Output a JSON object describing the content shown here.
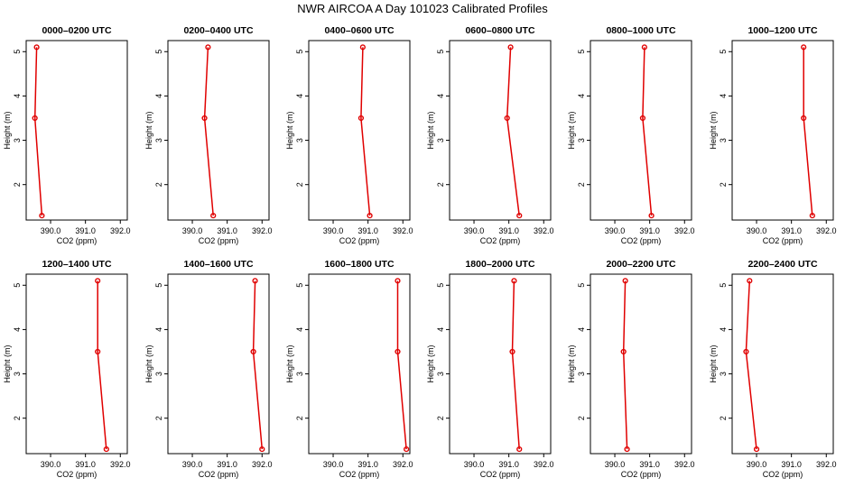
{
  "title": "NWR AIRCOA A  Day 101023  Calibrated Profiles",
  "chart_data": {
    "type": "line",
    "xlabel": "CO2 (ppm)",
    "ylabel": "Height (m)",
    "xlim": [
      389.3,
      392.2
    ],
    "ylim": [
      1.2,
      5.25
    ],
    "xticks": [
      390.0,
      391.0,
      392.0
    ],
    "xtick_labels": [
      "390.0",
      "391.0",
      "392.0"
    ],
    "yticks": [
      2,
      3,
      4,
      5
    ],
    "ytick_labels": [
      "2",
      "3",
      "4",
      "5"
    ],
    "heights": [
      5.1,
      3.5,
      1.3
    ],
    "line_color": "#e00000",
    "panels": [
      {
        "title": "0000–0200 UTC",
        "co2": [
          389.6,
          389.55,
          389.75
        ]
      },
      {
        "title": "0200–0400 UTC",
        "co2": [
          390.45,
          390.35,
          390.6
        ]
      },
      {
        "title": "0400–0600 UTC",
        "co2": [
          390.85,
          390.8,
          391.05
        ]
      },
      {
        "title": "0600–0800 UTC",
        "co2": [
          391.05,
          390.95,
          391.3
        ]
      },
      {
        "title": "0800–1000 UTC",
        "co2": [
          390.85,
          390.8,
          391.05
        ]
      },
      {
        "title": "1000–1200 UTC",
        "co2": [
          391.35,
          391.35,
          391.6
        ]
      },
      {
        "title": "1200–1400 UTC",
        "co2": [
          391.35,
          391.35,
          391.6
        ]
      },
      {
        "title": "1400–1600 UTC",
        "co2": [
          391.8,
          391.75,
          392.0
        ]
      },
      {
        "title": "1600–1800 UTC",
        "co2": [
          391.85,
          391.85,
          392.1
        ]
      },
      {
        "title": "1800–2000 UTC",
        "co2": [
          391.15,
          391.1,
          391.3
        ]
      },
      {
        "title": "2000–2200 UTC",
        "co2": [
          390.3,
          390.25,
          390.35
        ]
      },
      {
        "title": "2200–2400 UTC",
        "co2": [
          389.8,
          389.7,
          390.0
        ]
      }
    ]
  }
}
